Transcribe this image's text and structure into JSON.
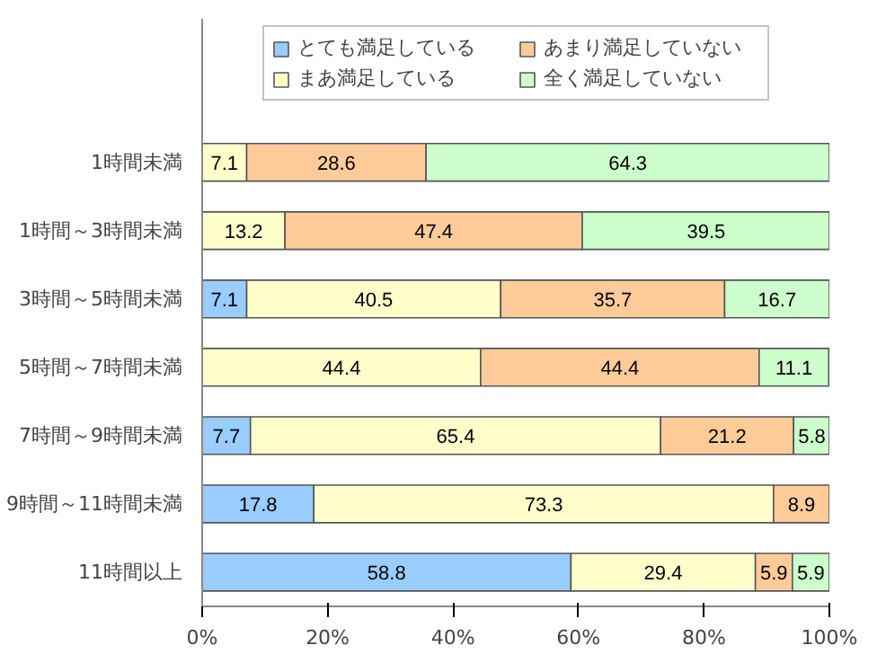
{
  "chart_data": {
    "type": "bar",
    "orientation": "horizontal",
    "stacked": true,
    "categories": [
      "1時間未満",
      "1時間～3時間未満",
      "3時間～5時間未満",
      "5時間～7時間未満",
      "7時間～9時間未満",
      "9時間～11時間未満",
      "11時間以上"
    ],
    "series": [
      {
        "name": "とても満足している",
        "color": "#99ccff",
        "values": [
          0,
          0,
          7.1,
          0,
          7.7,
          17.8,
          58.8
        ],
        "value_labels": [
          null,
          null,
          "7.1",
          null,
          "7.7",
          "17.8",
          "58.8"
        ]
      },
      {
        "name": "まあ満足している",
        "color": "#ffffcc",
        "values": [
          7.1,
          13.2,
          40.5,
          44.4,
          65.4,
          73.3,
          29.4
        ],
        "value_labels": [
          "7.1",
          "13.2",
          "40.5",
          "44.4",
          "65.4",
          "73.3",
          "29.4"
        ]
      },
      {
        "name": "あまり満足していない",
        "color": "#ffcc99",
        "values": [
          28.6,
          47.4,
          35.7,
          44.4,
          21.2,
          8.9,
          5.9
        ],
        "value_labels": [
          "28.6",
          "47.4",
          "35.7",
          "44.4",
          "21.2",
          "8.9",
          "5.9"
        ]
      },
      {
        "name": "全く満足していない",
        "color": "#ccffcc",
        "values": [
          64.3,
          39.5,
          16.7,
          11.1,
          5.8,
          0,
          5.9
        ],
        "value_labels": [
          "64.3",
          "39.5",
          "16.7",
          "11.1",
          "5.8",
          null,
          "5.9"
        ]
      }
    ],
    "xlim": [
      0,
      100
    ],
    "xticks": [
      {
        "value": 0,
        "label": "0%"
      },
      {
        "value": 20,
        "label": "20%"
      },
      {
        "value": 40,
        "label": "40%"
      },
      {
        "value": 60,
        "label": "60%"
      },
      {
        "value": 80,
        "label": "80%"
      },
      {
        "value": 100,
        "label": "100%"
      }
    ],
    "grid": false,
    "legend": "top"
  }
}
